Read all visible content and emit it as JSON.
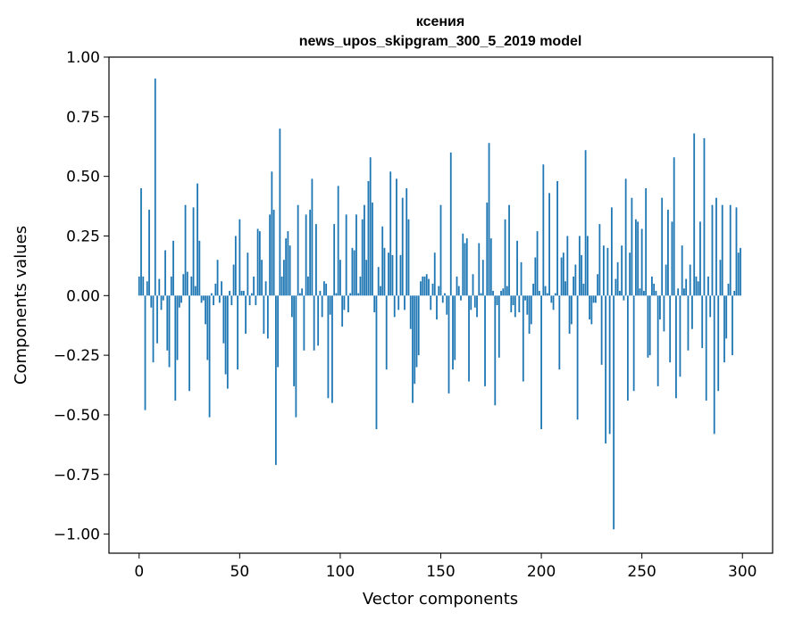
{
  "chart_data": {
    "type": "bar",
    "title": "ксения",
    "subtitle": "news_upos_skipgram_300_5_2019 model",
    "xlabel": "Vector components",
    "ylabel": "Components values",
    "xlim": [
      -15,
      315
    ],
    "ylim": [
      -1.08,
      1.0
    ],
    "xticks": [
      0,
      50,
      100,
      150,
      200,
      250,
      300
    ],
    "xtick_labels": [
      "0",
      "50",
      "100",
      "150",
      "200",
      "250",
      "300"
    ],
    "yticks": [
      1.0,
      0.75,
      0.5,
      0.25,
      0.0,
      -0.25,
      -0.5,
      -0.75,
      -1.0
    ],
    "ytick_labels": [
      "1.00",
      "0.75",
      "0.50",
      "0.25",
      "0.00",
      "−0.25",
      "−0.50",
      "−0.75",
      "−1.00"
    ],
    "bar_color": "#1f77b4",
    "x": [
      0,
      1,
      2,
      3,
      4,
      5,
      6,
      7,
      8,
      9,
      10,
      11,
      12,
      13,
      14,
      15,
      16,
      17,
      18,
      19,
      20,
      21,
      22,
      23,
      24,
      25,
      26,
      27,
      28,
      29,
      30,
      31,
      32,
      33,
      34,
      35,
      36,
      37,
      38,
      39,
      40,
      41,
      42,
      43,
      44,
      45,
      46,
      47,
      48,
      49,
      50,
      51,
      52,
      53,
      54,
      55,
      56,
      57,
      58,
      59,
      60,
      61,
      62,
      63,
      64,
      65,
      66,
      67,
      68,
      69,
      70,
      71,
      72,
      73,
      74,
      75,
      76,
      77,
      78,
      79,
      80,
      81,
      82,
      83,
      84,
      85,
      86,
      87,
      88,
      89,
      90,
      91,
      92,
      93,
      94,
      95,
      96,
      97,
      98,
      99,
      100,
      101,
      102,
      103,
      104,
      105,
      106,
      107,
      108,
      109,
      110,
      111,
      112,
      113,
      114,
      115,
      116,
      117,
      118,
      119,
      120,
      121,
      122,
      123,
      124,
      125,
      126,
      127,
      128,
      129,
      130,
      131,
      132,
      133,
      134,
      135,
      136,
      137,
      138,
      139,
      140,
      141,
      142,
      143,
      144,
      145,
      146,
      147,
      148,
      149,
      150,
      151,
      152,
      153,
      154,
      155,
      156,
      157,
      158,
      159,
      160,
      161,
      162,
      163,
      164,
      165,
      166,
      167,
      168,
      169,
      170,
      171,
      172,
      173,
      174,
      175,
      176,
      177,
      178,
      179,
      180,
      181,
      182,
      183,
      184,
      185,
      186,
      187,
      188,
      189,
      190,
      191,
      192,
      193,
      194,
      195,
      196,
      197,
      198,
      199,
      200,
      201,
      202,
      203,
      204,
      205,
      206,
      207,
      208,
      209,
      210,
      211,
      212,
      213,
      214,
      215,
      216,
      217,
      218,
      219,
      220,
      221,
      222,
      223,
      224,
      225,
      226,
      227,
      228,
      229,
      230,
      231,
      232,
      233,
      234,
      235,
      236,
      237,
      238,
      239,
      240,
      241,
      242,
      243,
      244,
      245,
      246,
      247,
      248,
      249,
      250,
      251,
      252,
      253,
      254,
      255,
      256,
      257,
      258,
      259,
      260,
      261,
      262,
      263,
      264,
      265,
      266,
      267,
      268,
      269,
      270,
      271,
      272,
      273,
      274,
      275,
      276,
      277,
      278,
      279,
      280,
      281,
      282,
      283,
      284,
      285,
      286,
      287,
      288,
      289,
      290,
      291,
      292,
      293,
      294,
      295,
      296,
      297,
      298,
      299
    ],
    "values": [
      0.08,
      0.45,
      0.08,
      -0.48,
      0.06,
      0.36,
      -0.05,
      -0.28,
      0.91,
      -0.2,
      0.07,
      -0.06,
      -0.02,
      0.19,
      -0.23,
      -0.3,
      0.08,
      0.23,
      -0.44,
      -0.27,
      -0.05,
      -0.03,
      0.09,
      0.38,
      0.1,
      -0.4,
      0.08,
      0.37,
      0.04,
      0.47,
      0.23,
      -0.03,
      -0.02,
      -0.12,
      -0.27,
      -0.51,
      0.01,
      -0.04,
      0.05,
      0.15,
      -0.03,
      0.06,
      -0.2,
      -0.33,
      -0.39,
      0.02,
      -0.04,
      0.13,
      0.25,
      -0.31,
      0.32,
      0.02,
      0.02,
      -0.16,
      0.18,
      -0.04,
      0.01,
      0.08,
      -0.04,
      0.28,
      0.27,
      0.15,
      -0.16,
      0.06,
      -0.18,
      0.34,
      0.52,
      0.36,
      -0.71,
      -0.3,
      0.7,
      0.08,
      0.15,
      0.24,
      0.27,
      0.21,
      -0.09,
      -0.38,
      -0.51,
      0.38,
      0.01,
      0.03,
      -0.23,
      0.34,
      0.08,
      0.36,
      0.49,
      -0.23,
      0.3,
      -0.21,
      0.02,
      -0.09,
      0.06,
      0.05,
      -0.43,
      -0.08,
      -0.45,
      0.3,
      0.01,
      0.46,
      0.15,
      -0.13,
      -0.06,
      0.34,
      -0.07,
      0.01,
      0.2,
      0.19,
      0.34,
      0.01,
      0.08,
      0.32,
      0.38,
      0.15,
      0.48,
      0.58,
      0.39,
      -0.07,
      -0.56,
      0.12,
      0.04,
      0.29,
      0.2,
      -0.31,
      0.18,
      0.52,
      0.17,
      -0.09,
      0.49,
      -0.06,
      0.17,
      0.41,
      -0.06,
      0.45,
      0.32,
      -0.14,
      -0.45,
      -0.37,
      -0.3,
      -0.25,
      0.06,
      0.08,
      0.08,
      0.09,
      0.07,
      -0.06,
      0.05,
      0.18,
      -0.1,
      0.04,
      0.38,
      -0.03,
      0.01,
      -0.08,
      -0.41,
      0.6,
      -0.31,
      -0.27,
      0.08,
      0.04,
      -0.02,
      0.26,
      0.22,
      0.24,
      -0.36,
      -0.06,
      0.09,
      -0.05,
      -0.09,
      0.22,
      0.01,
      0.15,
      -0.38,
      0.39,
      0.64,
      0.24,
      0.02,
      -0.46,
      -0.04,
      -0.26,
      0.02,
      0.03,
      0.32,
      0.04,
      0.38,
      -0.07,
      -0.04,
      -0.09,
      0.23,
      -0.07,
      0.14,
      -0.36,
      -0.02,
      -0.08,
      -0.16,
      -0.12,
      0.05,
      0.16,
      0.27,
      0.02,
      -0.56,
      0.55,
      0.04,
      0.01,
      0.43,
      -0.03,
      -0.06,
      0.01,
      0.48,
      -0.31,
      0.16,
      0.18,
      0.06,
      0.25,
      -0.16,
      -0.12,
      0.08,
      0.13,
      -0.52,
      0.25,
      0.17,
      0.05,
      0.61,
      0.25,
      -0.1,
      -0.12,
      -0.03,
      -0.03,
      0.09,
      0.3,
      -0.29,
      0.21,
      -0.62,
      0.2,
      -0.58,
      0.37,
      -0.98,
      0.07,
      0.14,
      0.02,
      0.21,
      -0.02,
      0.49,
      -0.44,
      0.18,
      0.41,
      -0.4,
      0.32,
      0.31,
      0.03,
      0.28,
      0.02,
      0.45,
      -0.26,
      -0.25,
      0.08,
      0.05,
      0.02,
      -0.38,
      -0.1,
      0.41,
      -0.15,
      0.13,
      0.36,
      -0.28,
      0.31,
      0.58,
      -0.43,
      0.03,
      -0.34,
      0.21,
      0.03,
      0.07,
      -0.23,
      0.13,
      -0.14,
      0.68,
      0.08,
      0.06,
      0.31,
      -0.22,
      0.66,
      -0.44,
      0.08,
      -0.09,
      0.38,
      -0.58,
      0.41,
      -0.4,
      0.15,
      0.38,
      -0.28,
      -0.18,
      0.05,
      0.38,
      -0.25,
      0.02,
      0.37,
      0.18,
      0.2
    ]
  }
}
